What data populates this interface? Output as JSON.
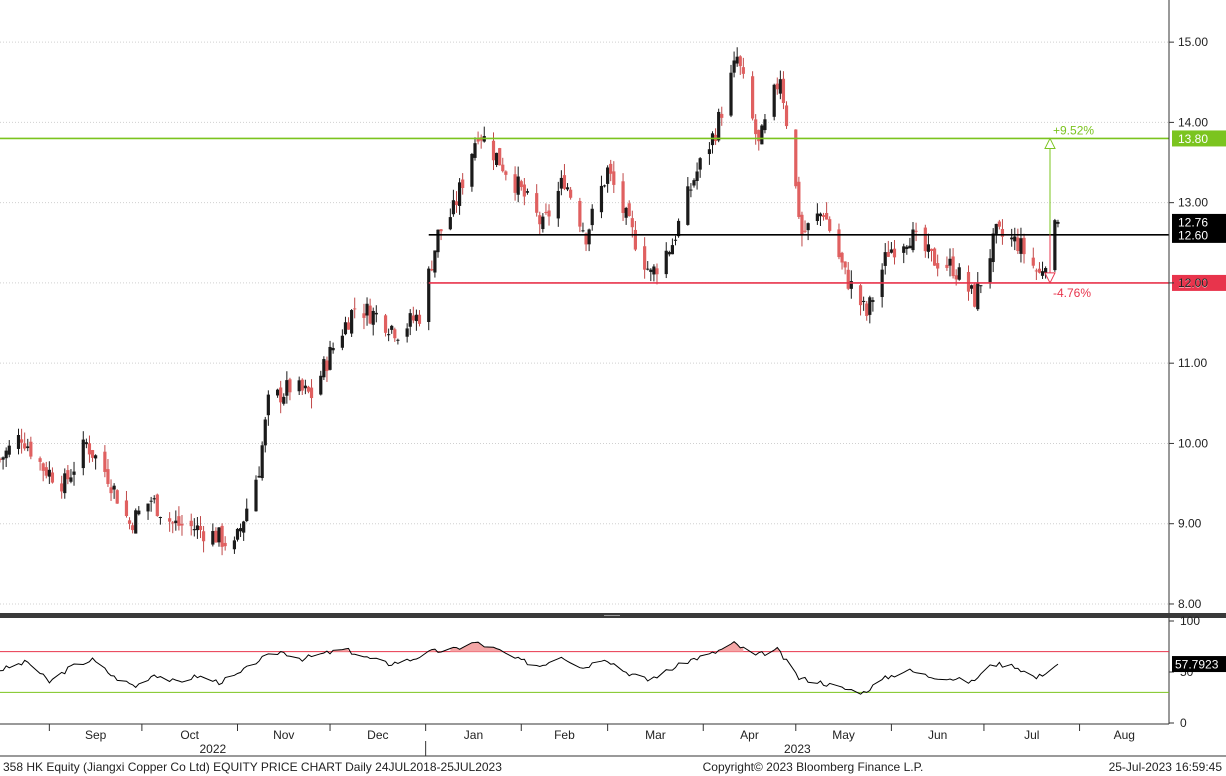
{
  "chart_data": [
    {
      "type": "candlestick",
      "ylim": [
        7.9,
        15.5
      ],
      "yticks": [
        "8.00",
        "9.00",
        "10.00",
        "11.00",
        "12.00",
        "13.00",
        "14.00",
        "15.00"
      ],
      "grid": true,
      "months": [
        "Sep",
        "Oct",
        "Nov",
        "Dec",
        "Jan",
        "Feb",
        "Mar",
        "Apr",
        "May",
        "Jun",
        "Jul",
        "Aug"
      ],
      "years": [
        "2022",
        "2023"
      ],
      "x_range": [
        "2022-08-16",
        "2023-08-30"
      ],
      "close_path": [
        [
          "2022-08-16",
          9.8
        ],
        [
          "2022-08-23",
          10.1
        ],
        [
          "2022-08-30",
          9.7
        ],
        [
          "2022-09-06",
          9.5
        ],
        [
          "2022-09-13",
          10.0
        ],
        [
          "2022-09-20",
          9.6
        ],
        [
          "2022-09-27",
          9.0
        ],
        [
          "2022-10-04",
          9.3
        ],
        [
          "2022-10-11",
          9.0
        ],
        [
          "2022-10-18",
          8.95
        ],
        [
          "2022-10-25",
          8.85
        ],
        [
          "2022-10-31",
          8.7
        ],
        [
          "2022-11-04",
          9.2
        ],
        [
          "2022-11-08",
          9.7
        ],
        [
          "2022-11-11",
          10.5
        ],
        [
          "2022-11-18",
          10.7
        ],
        [
          "2022-11-25",
          10.6
        ],
        [
          "2022-12-02",
          11.2
        ],
        [
          "2022-12-09",
          11.7
        ],
        [
          "2022-12-16",
          11.6
        ],
        [
          "2022-12-23",
          11.4
        ],
        [
          "2022-12-30",
          11.6
        ],
        [
          "2023-01-05",
          12.6
        ],
        [
          "2023-01-10",
          12.9
        ],
        [
          "2023-01-18",
          13.9
        ],
        [
          "2023-01-31",
          13.2
        ],
        [
          "2023-02-08",
          12.7
        ],
        [
          "2023-02-15",
          13.3
        ],
        [
          "2023-02-22",
          12.6
        ],
        [
          "2023-03-01",
          13.4
        ],
        [
          "2023-03-08",
          12.7
        ],
        [
          "2023-03-15",
          12.1
        ],
        [
          "2023-03-22",
          12.5
        ],
        [
          "2023-03-29",
          13.3
        ],
        [
          "2023-04-05",
          13.9
        ],
        [
          "2023-04-12",
          14.8
        ],
        [
          "2023-04-19",
          13.7
        ],
        [
          "2023-04-26",
          14.6
        ],
        [
          "2023-05-03",
          12.6
        ],
        [
          "2023-05-10",
          12.9
        ],
        [
          "2023-05-17",
          12.1
        ],
        [
          "2023-05-24",
          11.6
        ],
        [
          "2023-05-31",
          12.4
        ],
        [
          "2023-06-07",
          12.6
        ],
        [
          "2023-06-14",
          12.3
        ],
        [
          "2023-06-21",
          12.2
        ],
        [
          "2023-06-28",
          11.8
        ],
        [
          "2023-07-05",
          12.6
        ],
        [
          "2023-07-12",
          12.5
        ],
        [
          "2023-07-19",
          12.1
        ],
        [
          "2023-07-25",
          12.76
        ]
      ],
      "last_price": "12.76",
      "levels": [
        {
          "value": 13.8,
          "label": "13.80",
          "color": "#7bc41f",
          "start": "2022-08-16"
        },
        {
          "value": 12.6,
          "label": "12.60",
          "color": "#000000",
          "start": "2023-01-02"
        },
        {
          "value": 12.0,
          "label": "12.00",
          "color": "#e8344c",
          "start": "2023-01-02"
        }
      ],
      "annotations": [
        {
          "text": "+9.52%",
          "color": "#7bc41f"
        },
        {
          "text": "-4.76%",
          "color": "#e8344c"
        }
      ]
    },
    {
      "type": "line",
      "ylim": [
        0,
        100
      ],
      "yticks": [
        "0",
        "50",
        "100"
      ],
      "upper_band": 70,
      "lower_band": 30,
      "last_value": "57.7923",
      "colors": {
        "line": "#000000",
        "upper": "#e8344c",
        "lower": "#7bc41f",
        "overbought_fill": "#f4a6a6"
      },
      "values": [
        [
          "2022-08-16",
          52
        ],
        [
          "2022-08-25",
          60
        ],
        [
          "2022-09-01",
          40
        ],
        [
          "2022-09-08",
          55
        ],
        [
          "2022-09-15",
          62
        ],
        [
          "2022-09-22",
          45
        ],
        [
          "2022-09-29",
          36
        ],
        [
          "2022-10-05",
          48
        ],
        [
          "2022-10-12",
          40
        ],
        [
          "2022-10-19",
          46
        ],
        [
          "2022-10-26",
          40
        ],
        [
          "2022-11-01",
          47
        ],
        [
          "2022-11-08",
          62
        ],
        [
          "2022-11-15",
          70
        ],
        [
          "2022-11-22",
          63
        ],
        [
          "2022-11-29",
          68
        ],
        [
          "2022-12-06",
          72
        ],
        [
          "2022-12-13",
          64
        ],
        [
          "2022-12-20",
          58
        ],
        [
          "2022-12-27",
          62
        ],
        [
          "2023-01-03",
          70
        ],
        [
          "2023-01-10",
          72
        ],
        [
          "2023-01-17",
          79
        ],
        [
          "2023-01-24",
          72
        ],
        [
          "2023-01-31",
          62
        ],
        [
          "2023-02-07",
          56
        ],
        [
          "2023-02-14",
          66
        ],
        [
          "2023-02-21",
          54
        ],
        [
          "2023-02-28",
          64
        ],
        [
          "2023-03-07",
          50
        ],
        [
          "2023-03-14",
          42
        ],
        [
          "2023-03-21",
          52
        ],
        [
          "2023-03-28",
          62
        ],
        [
          "2023-04-04",
          68
        ],
        [
          "2023-04-11",
          78
        ],
        [
          "2023-04-18",
          66
        ],
        [
          "2023-04-25",
          72
        ],
        [
          "2023-05-02",
          44
        ],
        [
          "2023-05-09",
          40
        ],
        [
          "2023-05-16",
          34
        ],
        [
          "2023-05-23",
          30
        ],
        [
          "2023-05-30",
          44
        ],
        [
          "2023-06-06",
          52
        ],
        [
          "2023-06-13",
          46
        ],
        [
          "2023-06-20",
          44
        ],
        [
          "2023-06-27",
          40
        ],
        [
          "2023-07-04",
          58
        ],
        [
          "2023-07-11",
          56
        ],
        [
          "2023-07-18",
          44
        ],
        [
          "2023-07-25",
          57.79
        ]
      ]
    }
  ],
  "footer": {
    "left": "358 HK Equity (Jiangxi Copper Co Ltd) EQUITY PRICE CHART  Daily 24JUL2018-25JUL2023",
    "center": "Copyright© 2023 Bloomberg Finance L.P.",
    "right": "25-Jul-2023 16:59:45"
  }
}
